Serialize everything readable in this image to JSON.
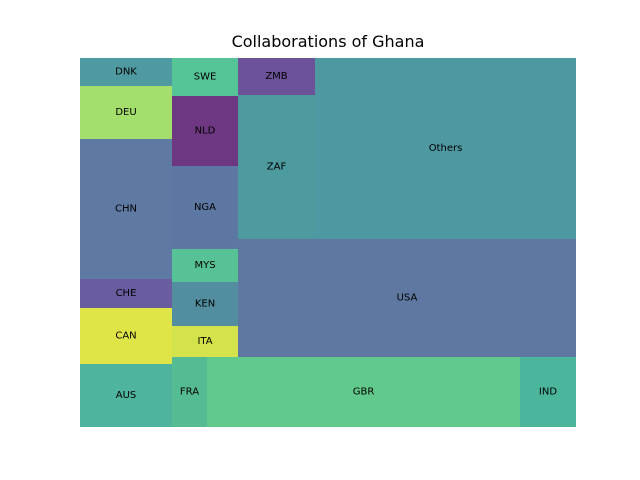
{
  "chart_data": {
    "type": "treemap",
    "title": "Collaborations of Ghana",
    "cells": [
      {
        "label": "DNK",
        "color": "#4f9aa1"
      },
      {
        "label": "DEU",
        "color": "#a4de6c"
      },
      {
        "label": "CHN",
        "color": "#5e7aa2"
      },
      {
        "label": "CHE",
        "color": "#6a5d9f"
      },
      {
        "label": "CAN",
        "color": "#dfe546"
      },
      {
        "label": "AUS",
        "color": "#4fb49d"
      },
      {
        "label": "SWE",
        "color": "#55c597"
      },
      {
        "label": "NLD",
        "color": "#6d3881"
      },
      {
        "label": "NGA",
        "color": "#5c78a2"
      },
      {
        "label": "MYS",
        "color": "#57c295"
      },
      {
        "label": "KEN",
        "color": "#528e9f"
      },
      {
        "label": "ITA",
        "color": "#d4e34c"
      },
      {
        "label": "ZMB",
        "color": "#6c5299"
      },
      {
        "label": "ZAF",
        "color": "#4d9a9f"
      },
      {
        "label": "Others",
        "color": "#4e99a1"
      },
      {
        "label": "USA",
        "color": "#5e78a1"
      },
      {
        "label": "FRA",
        "color": "#55bb93"
      },
      {
        "label": "GBR",
        "color": "#62c98d"
      },
      {
        "label": "IND",
        "color": "#4cb69c"
      }
    ]
  }
}
